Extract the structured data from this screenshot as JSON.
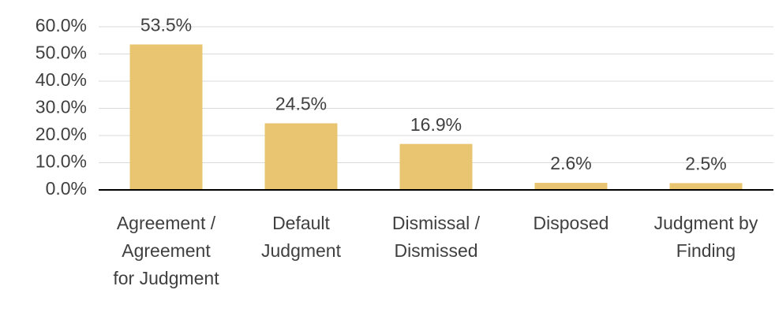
{
  "chart_data": {
    "type": "bar",
    "categories": [
      "Agreement / Agreement for Judgment",
      "Default Judgment",
      "Dismissal / Dismissed",
      "Disposed",
      "Judgment by Finding"
    ],
    "values": [
      53.5,
      24.5,
      16.9,
      2.6,
      2.5
    ],
    "value_labels": [
      "53.5%",
      "24.5%",
      "16.9%",
      "2.6%",
      "2.5%"
    ],
    "color": "#e9c572",
    "ylim": [
      0,
      60
    ],
    "yticks": [
      {
        "value": 0,
        "label": "0.0%"
      },
      {
        "value": 10,
        "label": "10.0%"
      },
      {
        "value": 20,
        "label": "20.0%"
      },
      {
        "value": 30,
        "label": "30.0%"
      },
      {
        "value": 40,
        "label": "40.0%"
      },
      {
        "value": 50,
        "label": "50.0%"
      },
      {
        "value": 60,
        "label": "60.0%"
      }
    ],
    "grid": true
  }
}
